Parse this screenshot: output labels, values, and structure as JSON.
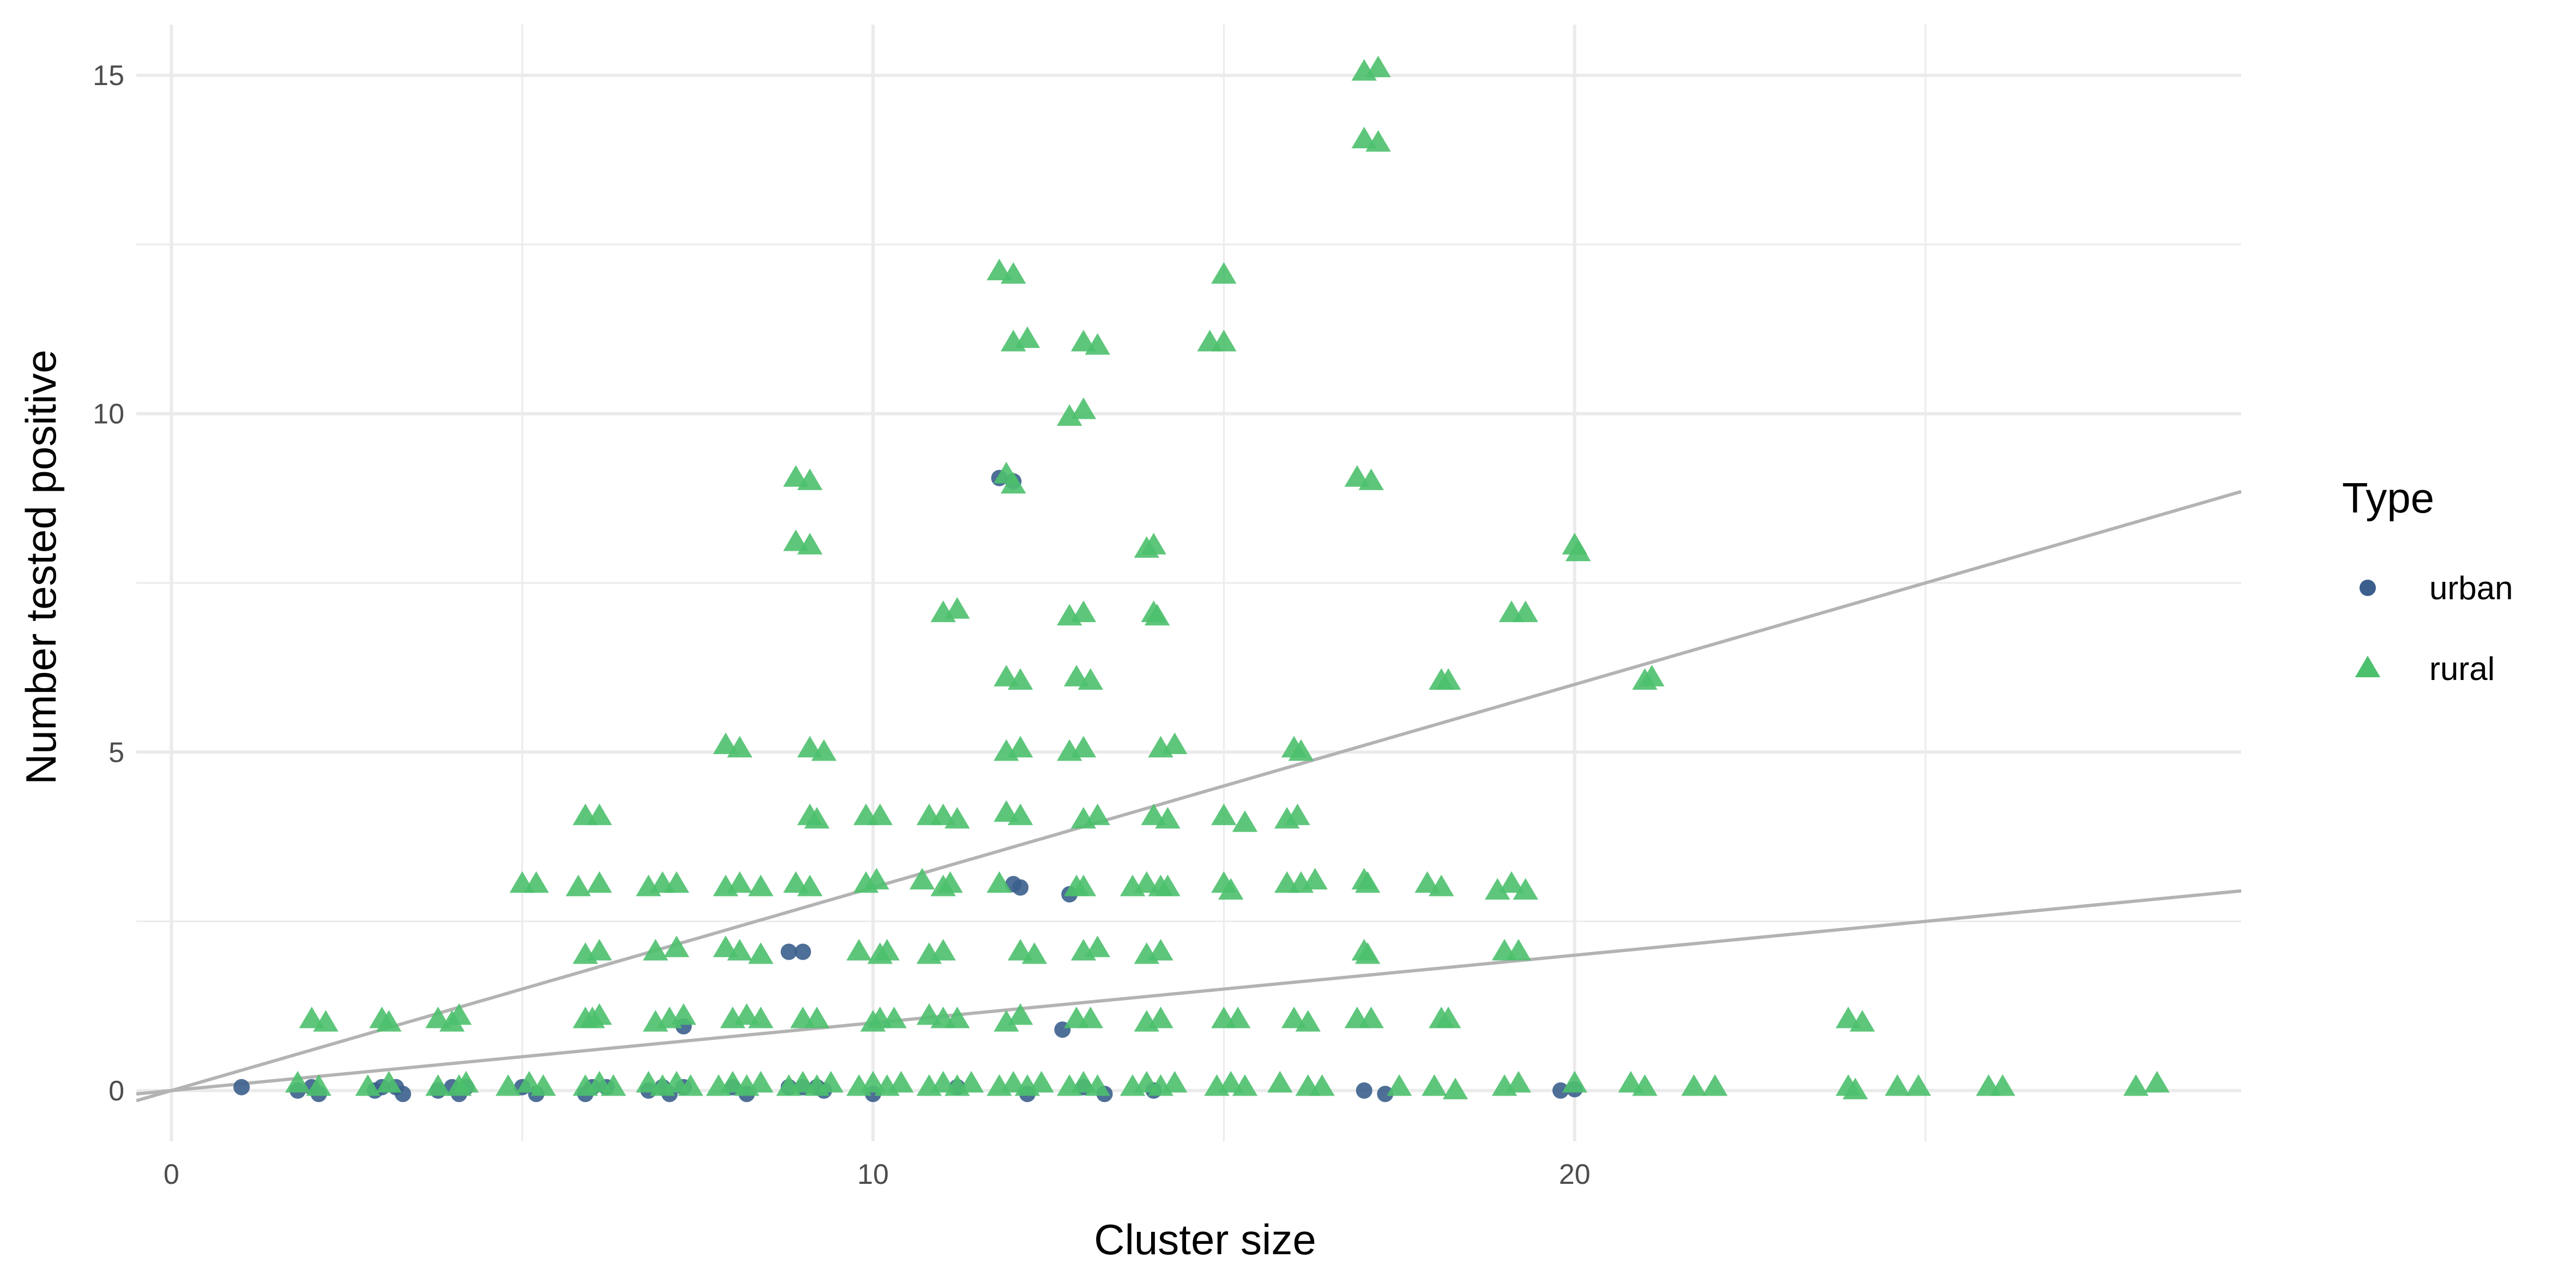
{
  "chart_data": {
    "type": "scatter",
    "title": "",
    "xlabel": "Cluster size",
    "ylabel": "Number tested positive",
    "xlim": [
      -0.5,
      29.5
    ],
    "ylim": [
      -0.75,
      15.75
    ],
    "x_ticks": [
      0,
      10,
      20
    ],
    "y_ticks": [
      0,
      5,
      10,
      15
    ],
    "grid": true,
    "legend": {
      "title": "Type",
      "position": "right",
      "entries": [
        "urban",
        "rural"
      ]
    },
    "colors": {
      "urban": "#3b5f8c",
      "rural": "#4cc06d",
      "reference_line": "#b3b3b3",
      "grid": "#ebebeb"
    },
    "reference_lines": [
      {
        "intercept": 0,
        "slope": 0.1,
        "label": ""
      },
      {
        "intercept": 0,
        "slope": 0.3,
        "label": ""
      }
    ],
    "series": [
      {
        "name": "urban",
        "marker": "circle",
        "points": [
          [
            1,
            0.05
          ],
          [
            1.8,
            0
          ],
          [
            2,
            0.05
          ],
          [
            2.1,
            -0.05
          ],
          [
            2.9,
            0
          ],
          [
            3,
            0.05
          ],
          [
            3.2,
            0.05
          ],
          [
            3.3,
            -0.05
          ],
          [
            3.8,
            0
          ],
          [
            4,
            0.05
          ],
          [
            4.1,
            -0.05
          ],
          [
            4.2,
            0.05
          ],
          [
            5,
            0.05
          ],
          [
            5.2,
            -0.05
          ],
          [
            5.9,
            -0.05
          ],
          [
            6,
            0.05
          ],
          [
            6.2,
            0.05
          ],
          [
            6.8,
            0
          ],
          [
            7,
            0.05
          ],
          [
            7.1,
            -0.05
          ],
          [
            7.3,
            0.05
          ],
          [
            7.3,
            0.95
          ],
          [
            8,
            0.05
          ],
          [
            8.2,
            -0.05
          ],
          [
            8.8,
            0.05
          ],
          [
            9,
            0.05
          ],
          [
            9.2,
            0.05
          ],
          [
            9.3,
            0
          ],
          [
            10,
            -0.05
          ],
          [
            11.2,
            0.05
          ],
          [
            12.2,
            -0.05
          ],
          [
            13,
            0.05
          ],
          [
            13.3,
            -0.05
          ],
          [
            14,
            0
          ],
          [
            11.8,
            9.05
          ],
          [
            12,
            9
          ],
          [
            12,
            3.05
          ],
          [
            12.1,
            3
          ],
          [
            12.8,
            2.9
          ],
          [
            8.8,
            2.05
          ],
          [
            9,
            2.05
          ],
          [
            12.7,
            0.9
          ],
          [
            17,
            0
          ],
          [
            17.3,
            -0.05
          ],
          [
            19.8,
            0
          ],
          [
            20,
            0.02
          ]
        ]
      },
      {
        "name": "rural",
        "marker": "triangle",
        "points": [
          [
            17,
            15.05
          ],
          [
            17.2,
            15.1
          ],
          [
            17,
            14.05
          ],
          [
            17.2,
            14
          ],
          [
            11.8,
            12.1
          ],
          [
            12,
            12.05
          ],
          [
            15,
            12.05
          ],
          [
            12,
            11.05
          ],
          [
            12.2,
            11.1
          ],
          [
            13,
            11.05
          ],
          [
            13.2,
            11
          ],
          [
            14.8,
            11.05
          ],
          [
            15,
            11.05
          ],
          [
            12.8,
            9.95
          ],
          [
            13,
            10.05
          ],
          [
            8.9,
            9.05
          ],
          [
            9.1,
            9
          ],
          [
            11.9,
            9.1
          ],
          [
            12,
            8.95
          ],
          [
            16.9,
            9.05
          ],
          [
            17.1,
            9
          ],
          [
            8.9,
            8.1
          ],
          [
            9.1,
            8.05
          ],
          [
            13.9,
            8
          ],
          [
            14,
            8.05
          ],
          [
            20,
            8.05
          ],
          [
            20.05,
            7.95
          ],
          [
            11,
            7.05
          ],
          [
            11.2,
            7.1
          ],
          [
            12.8,
            7
          ],
          [
            13,
            7.05
          ],
          [
            14,
            7.05
          ],
          [
            14.05,
            7
          ],
          [
            19.1,
            7.05
          ],
          [
            19.3,
            7.05
          ],
          [
            11.9,
            6.1
          ],
          [
            12.1,
            6.05
          ],
          [
            12.9,
            6.1
          ],
          [
            13.1,
            6.05
          ],
          [
            18.1,
            6.05
          ],
          [
            18.2,
            6.05
          ],
          [
            21,
            6.05
          ],
          [
            21.1,
            6.1
          ],
          [
            7.9,
            5.1
          ],
          [
            8.1,
            5.05
          ],
          [
            9.1,
            5.05
          ],
          [
            9.3,
            5
          ],
          [
            11.9,
            5
          ],
          [
            12.1,
            5.05
          ],
          [
            12.8,
            5
          ],
          [
            13,
            5.05
          ],
          [
            14.1,
            5.05
          ],
          [
            14.3,
            5.1
          ],
          [
            16,
            5.05
          ],
          [
            16.1,
            5
          ],
          [
            5.9,
            4.05
          ],
          [
            6.1,
            4.05
          ],
          [
            9.1,
            4.05
          ],
          [
            9.2,
            4
          ],
          [
            9.9,
            4.05
          ],
          [
            10.1,
            4.05
          ],
          [
            10.8,
            4.05
          ],
          [
            11,
            4.05
          ],
          [
            11.2,
            4
          ],
          [
            11.9,
            4.1
          ],
          [
            12.1,
            4.05
          ],
          [
            13,
            4
          ],
          [
            13.2,
            4.05
          ],
          [
            14,
            4.05
          ],
          [
            14.2,
            4
          ],
          [
            15,
            4.05
          ],
          [
            15.3,
            3.95
          ],
          [
            15.9,
            4
          ],
          [
            16.05,
            4.05
          ],
          [
            5,
            3.05
          ],
          [
            5.2,
            3.05
          ],
          [
            5.8,
            3
          ],
          [
            6.1,
            3.05
          ],
          [
            6.8,
            3
          ],
          [
            7,
            3.05
          ],
          [
            7.2,
            3.05
          ],
          [
            7.9,
            3
          ],
          [
            8.1,
            3.05
          ],
          [
            8.4,
            3
          ],
          [
            8.9,
            3.05
          ],
          [
            9.1,
            3
          ],
          [
            9.9,
            3.05
          ],
          [
            10.05,
            3.1
          ],
          [
            10.7,
            3.1
          ],
          [
            11,
            3
          ],
          [
            11.1,
            3.05
          ],
          [
            11.8,
            3.05
          ],
          [
            12.9,
            3
          ],
          [
            13,
            3
          ],
          [
            13.7,
            3
          ],
          [
            13.9,
            3.05
          ],
          [
            14.1,
            3
          ],
          [
            14.2,
            3
          ],
          [
            15,
            3.05
          ],
          [
            15.1,
            2.95
          ],
          [
            15.9,
            3.05
          ],
          [
            16.1,
            3.05
          ],
          [
            16.3,
            3.1
          ],
          [
            17,
            3.1
          ],
          [
            17.05,
            3.05
          ],
          [
            17.9,
            3.05
          ],
          [
            18.1,
            3
          ],
          [
            18.9,
            2.95
          ],
          [
            19.1,
            3.05
          ],
          [
            19.3,
            2.95
          ],
          [
            5.9,
            2
          ],
          [
            6.1,
            2.05
          ],
          [
            6.9,
            2.05
          ],
          [
            7.2,
            2.1
          ],
          [
            7.9,
            2.1
          ],
          [
            8.1,
            2.05
          ],
          [
            8.4,
            2
          ],
          [
            9.8,
            2.05
          ],
          [
            10.1,
            2
          ],
          [
            10.2,
            2.05
          ],
          [
            10.8,
            2
          ],
          [
            11,
            2.05
          ],
          [
            12.1,
            2.05
          ],
          [
            12.3,
            2
          ],
          [
            13,
            2.05
          ],
          [
            13.2,
            2.1
          ],
          [
            13.9,
            2
          ],
          [
            14.1,
            2.05
          ],
          [
            17,
            2.05
          ],
          [
            17.05,
            2
          ],
          [
            19,
            2.05
          ],
          [
            19.2,
            2.05
          ],
          [
            2,
            1.05
          ],
          [
            2.2,
            1
          ],
          [
            3,
            1.05
          ],
          [
            3.1,
            1
          ],
          [
            3.8,
            1.05
          ],
          [
            4,
            1
          ],
          [
            4.1,
            1.1
          ],
          [
            5.9,
            1.05
          ],
          [
            6,
            1.05
          ],
          [
            6.1,
            1.1
          ],
          [
            6.9,
            1
          ],
          [
            7.1,
            1.05
          ],
          [
            7.3,
            1.1
          ],
          [
            8,
            1.05
          ],
          [
            8.2,
            1.1
          ],
          [
            8.4,
            1.05
          ],
          [
            9,
            1.05
          ],
          [
            9.2,
            1.05
          ],
          [
            10,
            1
          ],
          [
            10.1,
            1.05
          ],
          [
            10.3,
            1.05
          ],
          [
            10.8,
            1.1
          ],
          [
            11,
            1.05
          ],
          [
            11.2,
            1.05
          ],
          [
            11.9,
            1
          ],
          [
            12.1,
            1.1
          ],
          [
            12.9,
            1.05
          ],
          [
            13.1,
            1.05
          ],
          [
            13.9,
            1
          ],
          [
            14.1,
            1.05
          ],
          [
            15,
            1.05
          ],
          [
            15.2,
            1.05
          ],
          [
            16,
            1.05
          ],
          [
            16.2,
            1
          ],
          [
            16.9,
            1.05
          ],
          [
            17.1,
            1.05
          ],
          [
            18.1,
            1.05
          ],
          [
            18.2,
            1.05
          ],
          [
            23.9,
            1.05
          ],
          [
            24.1,
            1
          ],
          [
            1.8,
            0.1
          ],
          [
            2.1,
            0.05
          ],
          [
            2.8,
            0.05
          ],
          [
            3.1,
            0.1
          ],
          [
            3.8,
            0.05
          ],
          [
            4.1,
            0.05
          ],
          [
            4.2,
            0.1
          ],
          [
            4.8,
            0.05
          ],
          [
            5.1,
            0.1
          ],
          [
            5.3,
            0.05
          ],
          [
            5.9,
            0.05
          ],
          [
            6.1,
            0.1
          ],
          [
            6.3,
            0.05
          ],
          [
            6.8,
            0.1
          ],
          [
            7,
            0.05
          ],
          [
            7.2,
            0.1
          ],
          [
            7.4,
            0.05
          ],
          [
            7.8,
            0.05
          ],
          [
            8,
            0.1
          ],
          [
            8.2,
            0.05
          ],
          [
            8.4,
            0.1
          ],
          [
            8.8,
            0.05
          ],
          [
            9,
            0.1
          ],
          [
            9.2,
            0.05
          ],
          [
            9.4,
            0.1
          ],
          [
            9.8,
            0.05
          ],
          [
            10,
            0.1
          ],
          [
            10.2,
            0.05
          ],
          [
            10.4,
            0.1
          ],
          [
            10.8,
            0.05
          ],
          [
            11,
            0.1
          ],
          [
            11.2,
            0.05
          ],
          [
            11.4,
            0.1
          ],
          [
            11.8,
            0.05
          ],
          [
            12,
            0.1
          ],
          [
            12.2,
            0.05
          ],
          [
            12.4,
            0.1
          ],
          [
            12.8,
            0.05
          ],
          [
            13,
            0.1
          ],
          [
            13.2,
            0.05
          ],
          [
            13.7,
            0.05
          ],
          [
            13.9,
            0.1
          ],
          [
            14.1,
            0.05
          ],
          [
            14.3,
            0.1
          ],
          [
            14.9,
            0.05
          ],
          [
            15.1,
            0.1
          ],
          [
            15.3,
            0.05
          ],
          [
            15.8,
            0.1
          ],
          [
            16.2,
            0.05
          ],
          [
            16.4,
            0.05
          ],
          [
            17.5,
            0.05
          ],
          [
            18,
            0.05
          ],
          [
            18.3,
            0
          ],
          [
            19,
            0.05
          ],
          [
            19.2,
            0.1
          ],
          [
            20,
            0.1
          ],
          [
            20.8,
            0.1
          ],
          [
            21,
            0.05
          ],
          [
            21.7,
            0.05
          ],
          [
            22,
            0.05
          ],
          [
            23.9,
            0.05
          ],
          [
            24,
            0
          ],
          [
            24.6,
            0.05
          ],
          [
            24.9,
            0.05
          ],
          [
            25.9,
            0.05
          ],
          [
            26.1,
            0.05
          ],
          [
            28,
            0.05
          ],
          [
            28.3,
            0.1
          ]
        ]
      }
    ]
  }
}
